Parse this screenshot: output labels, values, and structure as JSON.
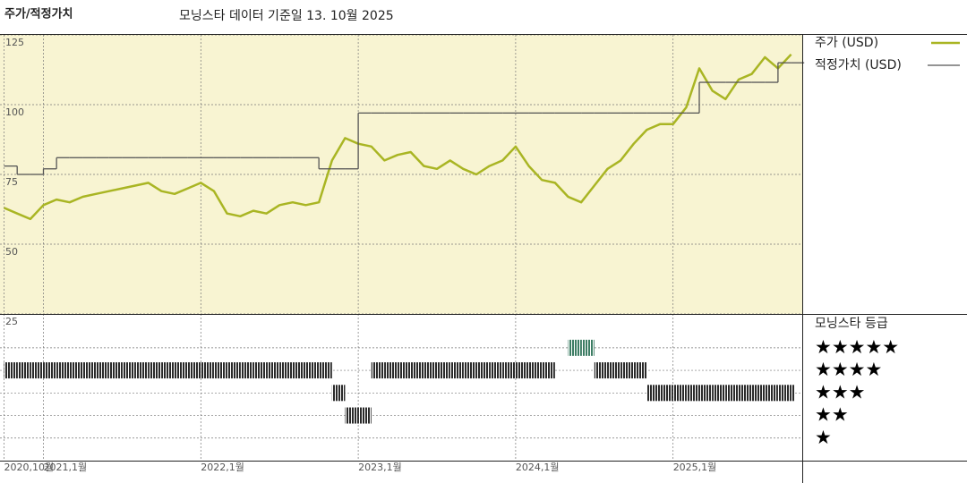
{
  "header": {
    "title": "주가/적정가치",
    "subtitle": "모닝스타 데이터 기준일 13. 10월 2025"
  },
  "chart_data": [
    {
      "type": "line",
      "x": [
        "2020-10",
        "2020-11",
        "2020-12",
        "2021-01",
        "2021-02",
        "2021-03",
        "2021-04",
        "2021-05",
        "2021-06",
        "2021-07",
        "2021-08",
        "2021-09",
        "2021-10",
        "2021-11",
        "2021-12",
        "2022-01",
        "2022-02",
        "2022-03",
        "2022-04",
        "2022-05",
        "2022-06",
        "2022-07",
        "2022-08",
        "2022-09",
        "2022-10",
        "2022-11",
        "2022-12",
        "2023-01",
        "2023-02",
        "2023-03",
        "2023-04",
        "2023-05",
        "2023-06",
        "2023-07",
        "2023-08",
        "2023-09",
        "2023-10",
        "2023-11",
        "2023-12",
        "2024-01",
        "2024-02",
        "2024-03",
        "2024-04",
        "2024-05",
        "2024-06",
        "2024-07",
        "2024-08",
        "2024-09",
        "2024-10",
        "2024-11",
        "2024-12",
        "2025-01",
        "2025-02",
        "2025-03",
        "2025-04",
        "2025-05",
        "2025-06",
        "2025-07",
        "2025-08",
        "2025-09",
        "2025-10"
      ],
      "series": [
        {
          "name": "주가 (USD)",
          "color": "#a9b523",
          "values": [
            63,
            61,
            59,
            64,
            66,
            65,
            67,
            68,
            69,
            70,
            71,
            72,
            69,
            68,
            70,
            72,
            69,
            61,
            60,
            62,
            61,
            64,
            65,
            64,
            65,
            80,
            88,
            86,
            85,
            80,
            82,
            83,
            78,
            77,
            80,
            77,
            75,
            78,
            80,
            85,
            78,
            73,
            72,
            67,
            65,
            71,
            77,
            80,
            86,
            91,
            93,
            93,
            99,
            113,
            105,
            102,
            109,
            111,
            117,
            113,
            118
          ]
        },
        {
          "name": "적정가치 (USD)",
          "color": "#555555",
          "step": true,
          "values": [
            78,
            75,
            75,
            77,
            81,
            81,
            81,
            81,
            81,
            81,
            81,
            81,
            81,
            81,
            81,
            81,
            81,
            81,
            81,
            81,
            81,
            81,
            81,
            81,
            77,
            77,
            77,
            97,
            97,
            97,
            97,
            97,
            97,
            97,
            97,
            97,
            97,
            97,
            97,
            97,
            97,
            97,
            97,
            97,
            97,
            97,
            97,
            97,
            97,
            97,
            97,
            97,
            97,
            108,
            108,
            108,
            108,
            108,
            108,
            115,
            115
          ]
        }
      ],
      "ylim": [
        25,
        125
      ],
      "yticks": [
        25,
        50,
        75,
        100,
        125
      ],
      "xticks": [
        {
          "value": "2020-10",
          "label": "2020,10월"
        },
        {
          "value": "2021-01",
          "label": "2021,1월"
        },
        {
          "value": "2022-01",
          "label": "2022,1월"
        },
        {
          "value": "2023-01",
          "label": "2023,1월"
        },
        {
          "value": "2024-01",
          "label": "2024,1월"
        },
        {
          "value": "2025-01",
          "label": "2025,1월"
        }
      ],
      "grid": true,
      "background": "#f8f4d2"
    },
    {
      "type": "rating",
      "title": "모닝스타 등급",
      "values": [
        4,
        4,
        4,
        4,
        4,
        4,
        4,
        4,
        4,
        4,
        4,
        4,
        4,
        4,
        4,
        4,
        4,
        4,
        4,
        4,
        4,
        4,
        4,
        4,
        4,
        3,
        2,
        2,
        4,
        4,
        4,
        4,
        4,
        4,
        4,
        4,
        4,
        4,
        4,
        4,
        4,
        4,
        null,
        5,
        5,
        4,
        4,
        4,
        4,
        3,
        3,
        3,
        3,
        3,
        3,
        3,
        3,
        3,
        3,
        3,
        3
      ],
      "ylim": [
        0,
        6.5
      ],
      "yticks": [
        {
          "value": 5,
          "label": "★★★★★"
        },
        {
          "value": 4,
          "label": "★★★★"
        },
        {
          "value": 3,
          "label": "★★★"
        },
        {
          "value": 2,
          "label": "★★"
        },
        {
          "value": 1,
          "label": "★"
        }
      ],
      "color": "#2a2a2a",
      "top_color": "#3d7d64",
      "grid": true
    }
  ]
}
